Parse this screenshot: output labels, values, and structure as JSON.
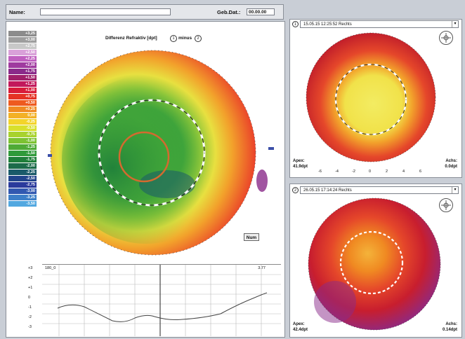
{
  "header": {
    "name_label": "Name:",
    "name_value": "",
    "dob_label": "Geb.Dat.:",
    "dob_value": "00.00.00"
  },
  "main_map": {
    "title": "Differenz Refraktiv [dpt]",
    "option_a": "1",
    "option_sep": "minus",
    "option_b": "2",
    "num_button": "Num",
    "colors": {
      "outer": "#e9312a",
      "mid": "#f2a12b",
      "inner": "#2c9a3a",
      "center_ring": "#d46a2f",
      "accent": "#3b4fa8"
    }
  },
  "scale": {
    "values": [
      "+3,25",
      "+3,00",
      "+2,75",
      "+2,50",
      "+2,25",
      "+2,00",
      "+1,75",
      "+1,50",
      "+1,25",
      "+1,00",
      "+0,75",
      "+0,50",
      "+0,25",
      "0,00",
      "-0,25",
      "-0,50",
      "-0,75",
      "-1,00",
      "-1,25",
      "-1,50",
      "-1,75",
      "-2,00",
      "-2,25",
      "-2,50",
      "-2,75",
      "-3,00",
      "-3,25",
      "-3,50"
    ],
    "colors": [
      "#8c8c8c",
      "#9e9e9e",
      "#c8c8c8",
      "#d9a0d9",
      "#c060c0",
      "#9f3a9f",
      "#8a2a8a",
      "#a0206a",
      "#c2185b",
      "#d81b3a",
      "#e53224",
      "#ee5a1f",
      "#f08a22",
      "#f3b126",
      "#f3d42a",
      "#d8e02c",
      "#a8d22e",
      "#7cc232",
      "#4eaa36",
      "#2f9a3a",
      "#1f7f3a",
      "#1b6b4a",
      "#1a5a6a",
      "#22448c",
      "#2a3a9c",
      "#3158b0",
      "#3d7fc8",
      "#52a8e0"
    ]
  },
  "profile": {
    "left_label": "180_0",
    "right_label": "3.77",
    "y_labels": [
      "+3",
      "+2",
      "+1",
      "0",
      "-1",
      "-2",
      "-3"
    ]
  },
  "panel1": {
    "index": "1",
    "title": "15.05.15 12:25:52 Rechts",
    "bottom_left_label": "Apex:",
    "bottom_left_value": "41.9dpt",
    "bottom_right_label": "Achs:",
    "bottom_right_value": "0.0dpt",
    "x_ticks": [
      "-6",
      "-4",
      "-2",
      "0",
      "2",
      "4",
      "6"
    ],
    "colors": {
      "outer": "#d62a26",
      "mid": "#f08a22",
      "inner": "#f1e24a"
    }
  },
  "panel2": {
    "index": "2",
    "title": "26.05.15 17:14:24 Rechts",
    "bottom_left_label": "Apex:",
    "bottom_left_value": "42.4dpt",
    "bottom_right_label": "Achs:",
    "bottom_right_value": "0.14dpt",
    "colors": {
      "outer": "#8a2a8a",
      "mid": "#d62a26",
      "inner": "#f2a12b"
    }
  }
}
